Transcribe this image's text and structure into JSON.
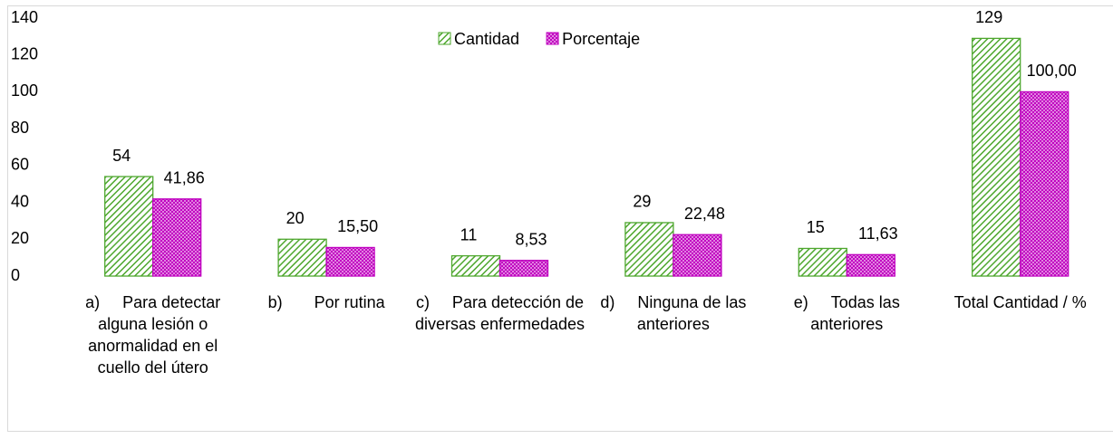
{
  "chart_data": {
    "type": "bar",
    "categories": [
      "a)     Para detectar alguna lesión o anormalidad en el cuello del útero",
      "b)       Por rutina",
      "c)     Para detección de diversas enfermedades",
      "d)     Ninguna de las anteriores",
      "e)     Todas las anteriores",
      "Total Cantidad / %"
    ],
    "series": [
      {
        "name": "Cantidad",
        "color": "#4ea72e",
        "values": [
          54,
          20,
          11,
          29,
          15,
          129
        ]
      },
      {
        "name": "Porcentaje",
        "color": "#c000c0",
        "values": [
          41.86,
          15.5,
          8.53,
          22.48,
          11.63,
          100
        ],
        "value_labels": [
          "41,86",
          "15,50",
          "8,53",
          "22,48",
          "11,63",
          "100,00"
        ]
      }
    ],
    "ylim": [
      0,
      140
    ],
    "yticks": [
      0,
      20,
      40,
      60,
      80,
      100,
      120,
      140
    ],
    "grid": false,
    "legend": "top"
  }
}
